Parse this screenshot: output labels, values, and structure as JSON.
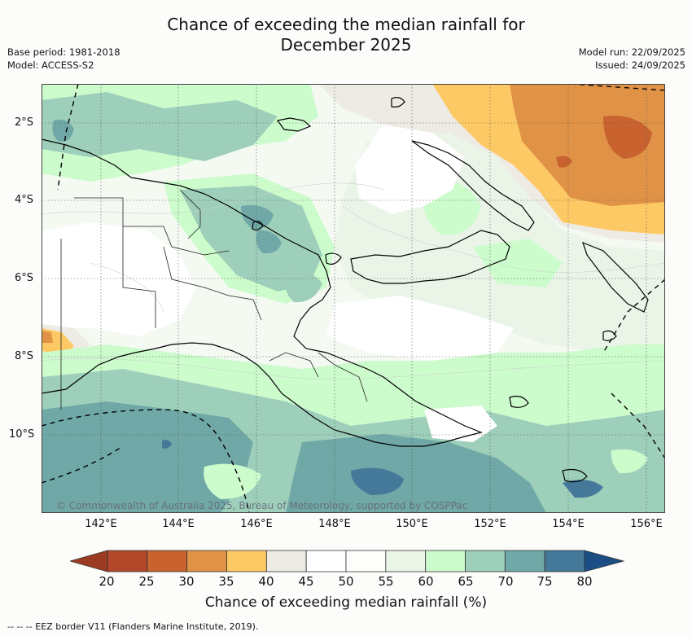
{
  "title": {
    "line1": "Chance of exceeding the median rainfall for",
    "line2": "December 2025"
  },
  "meta": {
    "base_period": "Base period: 1981-2018",
    "model": "Model: ACCESS-S2",
    "model_run": "Model run: 22/09/2025",
    "issued": "Issued: 24/09/2025"
  },
  "map": {
    "lat_labels": [
      "2°S",
      "4°S",
      "6°S",
      "8°S",
      "10°S"
    ],
    "lon_labels": [
      "142°E",
      "144°E",
      "146°E",
      "148°E",
      "150°E",
      "152°E",
      "154°E",
      "156°E"
    ],
    "copyright": "© Commonwealth of Australia 2025, Bureau of Meteorology, supported by COSPPac"
  },
  "colorbar": {
    "ticks": [
      "20",
      "25",
      "30",
      "35",
      "40",
      "45",
      "50",
      "55",
      "60",
      "65",
      "70",
      "75",
      "80"
    ],
    "colors": [
      "#b2472a",
      "#c8632f",
      "#e09247",
      "#fdc964",
      "#eeebe5",
      "#ffffff",
      "#fdfefc",
      "#eaf5e8",
      "#ccfbcc",
      "#9ecfbb",
      "#6fa8a6",
      "#44799a"
    ],
    "under_color": "#9b3b21",
    "over_color": "#1a4e84",
    "label": "Chance of exceeding median rainfall (%)"
  },
  "legend_note": "-- -- -- EEZ border V11 (Flanders Marine Institute, 2019).",
  "colors": {
    "ocean_base": "#ffffff",
    "land_outline": "#000000",
    "grid": "#555555"
  }
}
